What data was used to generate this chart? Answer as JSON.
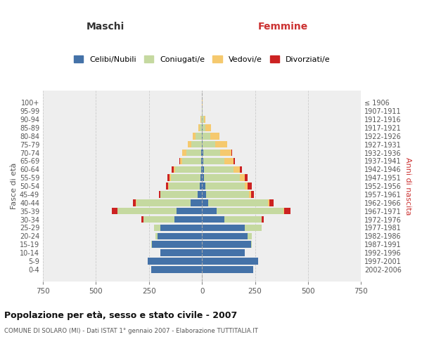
{
  "age_groups": [
    "0-4",
    "5-9",
    "10-14",
    "15-19",
    "20-24",
    "25-29",
    "30-34",
    "35-39",
    "40-44",
    "45-49",
    "50-54",
    "55-59",
    "60-64",
    "65-69",
    "70-74",
    "75-79",
    "80-84",
    "85-89",
    "90-94",
    "95-99",
    "100+"
  ],
  "birth_years": [
    "2002-2006",
    "1997-2001",
    "1992-1996",
    "1987-1991",
    "1982-1986",
    "1977-1981",
    "1972-1976",
    "1967-1971",
    "1962-1966",
    "1957-1961",
    "1952-1956",
    "1947-1951",
    "1942-1946",
    "1937-1941",
    "1932-1936",
    "1927-1931",
    "1922-1926",
    "1917-1921",
    "1912-1916",
    "1907-1911",
    "≤ 1906"
  ],
  "males": {
    "celibe": [
      240,
      255,
      195,
      235,
      210,
      195,
      130,
      120,
      55,
      20,
      10,
      8,
      5,
      3,
      3,
      0,
      0,
      0,
      0,
      0,
      0
    ],
    "coniugato": [
      0,
      0,
      1,
      4,
      10,
      30,
      145,
      280,
      255,
      175,
      145,
      140,
      120,
      90,
      70,
      50,
      30,
      12,
      5,
      2,
      0
    ],
    "vedovo": [
      0,
      0,
      0,
      0,
      0,
      0,
      0,
      0,
      2,
      2,
      4,
      5,
      8,
      10,
      20,
      18,
      15,
      5,
      2,
      0,
      0
    ],
    "divorziato": [
      0,
      0,
      0,
      0,
      0,
      0,
      10,
      25,
      15,
      5,
      10,
      10,
      10,
      5,
      0,
      0,
      0,
      0,
      0,
      0,
      0
    ]
  },
  "females": {
    "nubile": [
      240,
      265,
      200,
      230,
      215,
      200,
      105,
      70,
      30,
      20,
      15,
      10,
      8,
      5,
      5,
      3,
      3,
      2,
      0,
      0,
      0
    ],
    "coniugata": [
      0,
      0,
      2,
      5,
      20,
      80,
      175,
      315,
      280,
      200,
      185,
      170,
      140,
      100,
      80,
      60,
      35,
      15,
      8,
      2,
      0
    ],
    "vedova": [
      0,
      0,
      0,
      0,
      0,
      0,
      2,
      3,
      8,
      10,
      15,
      20,
      30,
      45,
      55,
      55,
      45,
      25,
      8,
      2,
      2
    ],
    "divorziata": [
      0,
      0,
      0,
      0,
      0,
      2,
      10,
      30,
      20,
      15,
      20,
      15,
      12,
      5,
      3,
      0,
      0,
      0,
      0,
      0,
      0
    ]
  },
  "colors": {
    "celibe": "#4472a8",
    "coniugato": "#c5d9a0",
    "vedovo": "#f5c96e",
    "divorziato": "#cc2222"
  },
  "title": "Popolazione per età, sesso e stato civile - 2007",
  "subtitle": "COMUNE DI SOLARO (MI) - Dati ISTAT 1° gennaio 2007 - Elaborazione TUTTITALIA.IT",
  "ylabel": "Fasce di età",
  "ylabel_right": "Anni di nascita",
  "xlabel_left": "Maschi",
  "xlabel_right": "Femmine",
  "xlim": 750,
  "xticks": [
    -750,
    -500,
    -250,
    0,
    250,
    500,
    750
  ],
  "legend_labels": [
    "Celibi/Nubili",
    "Coniugati/e",
    "Vedovi/e",
    "Divorziati/e"
  ],
  "bg_color": "#ffffff",
  "plot_bg": "#eeeeee"
}
